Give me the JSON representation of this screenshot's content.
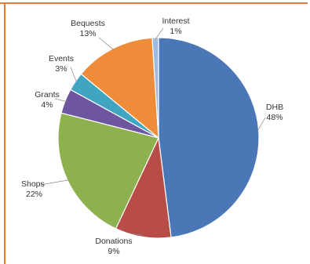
{
  "chart_data": {
    "type": "pie",
    "slices": [
      {
        "name": "DHB",
        "value": 48,
        "pct_label": "48%",
        "color": "#4a78b7"
      },
      {
        "name": "Donations",
        "value": 9,
        "pct_label": "9%",
        "color": "#b84c46"
      },
      {
        "name": "Shops",
        "value": 22,
        "pct_label": "22%",
        "color": "#8db14e"
      },
      {
        "name": "Grants",
        "value": 4,
        "pct_label": "4%",
        "color": "#6e55a0"
      },
      {
        "name": "Events",
        "value": 3,
        "pct_label": "3%",
        "color": "#3fa5c0"
      },
      {
        "name": "Bequests",
        "value": 13,
        "pct_label": "13%",
        "color": "#ee8c3a"
      },
      {
        "name": "Interest",
        "value": 1,
        "pct_label": "1%",
        "color": "#9dbbe0"
      }
    ],
    "legend": "none",
    "labels": "outside with leader lines"
  },
  "colors": {
    "frame_border": "#e07d3a"
  }
}
